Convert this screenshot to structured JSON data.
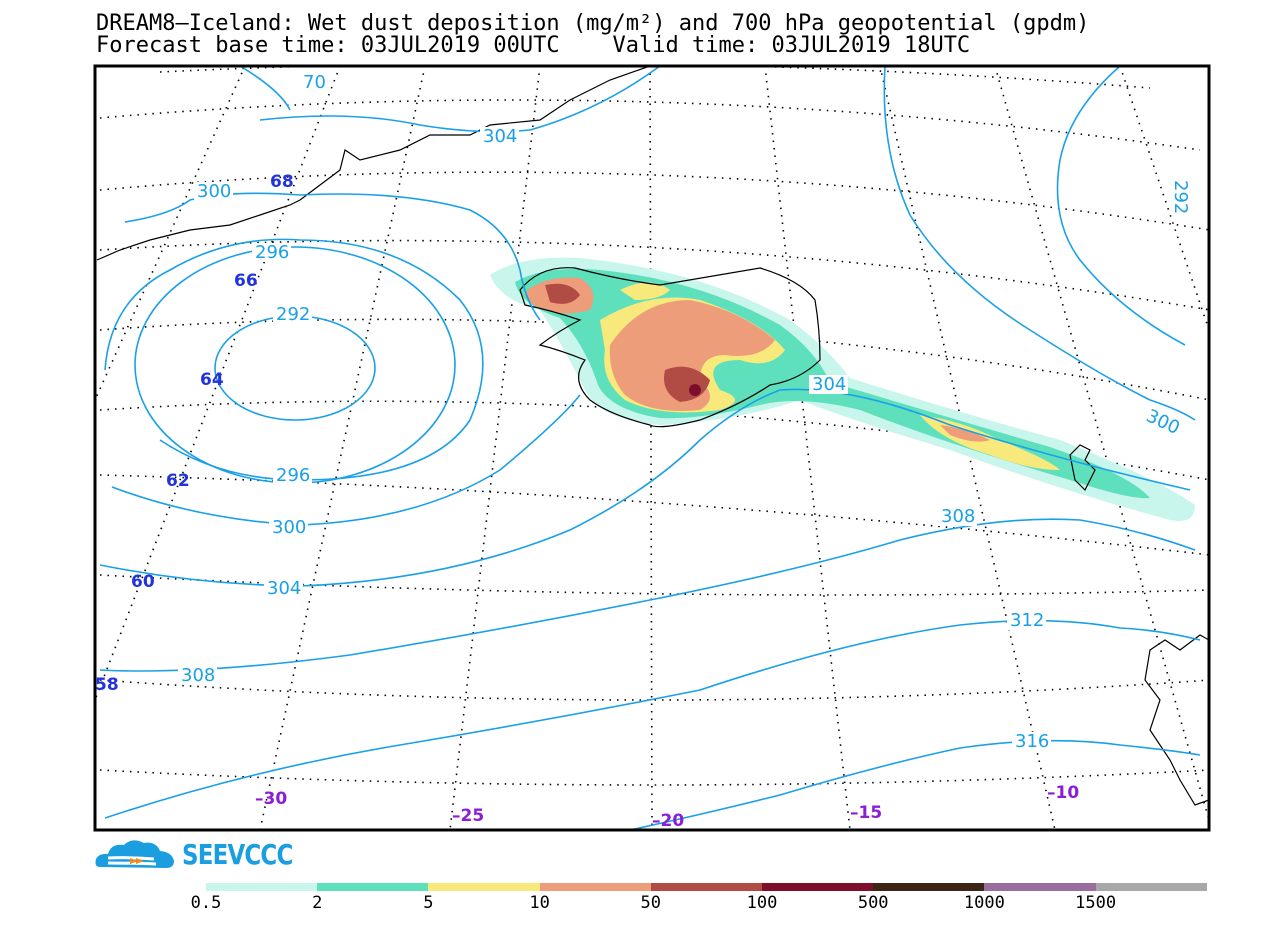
{
  "title_line1": "DREAM8—Iceland: Wet dust deposition (mg/m²) and 700 hPa geopotential (gpdm)",
  "title_line2": "Forecast base time: 03JUL2019 00UTC    Valid time: 03JUL2019 18UTC",
  "contour_labels": [
    "70",
    "304",
    "300",
    "296",
    "292",
    "296",
    "300",
    "304",
    "308",
    "304",
    "308",
    "312",
    "316",
    "300",
    "292"
  ],
  "latitude_labels": [
    "68",
    "66",
    "64",
    "62",
    "60",
    "58"
  ],
  "longitude_labels": [
    "–30",
    "–25",
    "–20",
    "–15",
    "–10"
  ],
  "logo_text": "SEEVCCC",
  "legend": {
    "colors": [
      "#c8f5ec",
      "#5fe0bd",
      "#f7e97c",
      "#ee9d7a",
      "#b04c44",
      "#7e0f2c",
      "#3d2516",
      "#9a6e9c",
      "#a8a8a8"
    ],
    "labels": [
      "0.5",
      "2",
      "5",
      "10",
      "50",
      "100",
      "500",
      "1000",
      "1500"
    ]
  },
  "colors": {
    "contour": "#1aa0e8",
    "lat_label": "#2233dd",
    "lon_label": "#8a1ed6"
  }
}
